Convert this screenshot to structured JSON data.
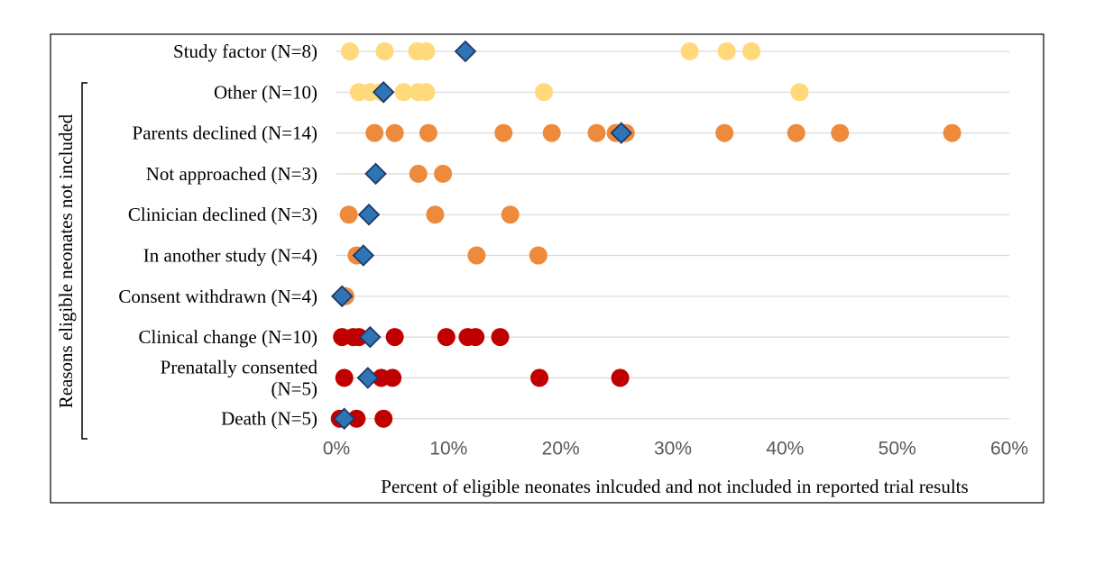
{
  "chart_data": {
    "type": "scatter",
    "title": "",
    "xlabel": "Percent of eligible neonates inlcuded and not included in reported trial results",
    "ylabel": "Reasons eligible neonates not included",
    "xlim": [
      0,
      60
    ],
    "x_ticks": [
      "0%",
      "10%",
      "20%",
      "30%",
      "40%",
      "50%",
      "60%"
    ],
    "grid": true,
    "colors": {
      "yellow": "#FFD97A",
      "orange": "#EE8A3C",
      "red": "#C00000",
      "mean_marker": "#2E75B6",
      "mean_border": "#1F3864",
      "grid": "#D9D9D9"
    },
    "categories": [
      {
        "label": "Study factor (N=8)",
        "color": "yellow",
        "points": [
          1.2,
          4.3,
          7.2,
          8.0,
          31.5,
          34.8,
          37.0
        ],
        "mean": 11.5
      },
      {
        "label": "Other (N=10)",
        "color": "yellow",
        "points": [
          2.0,
          3.0,
          4.0,
          6.0,
          7.3,
          8.0,
          18.5,
          41.3
        ],
        "mean": 4.2
      },
      {
        "label": "Parents declined (N=14)",
        "color": "orange",
        "points": [
          3.4,
          5.2,
          8.2,
          14.9,
          19.2,
          23.2,
          24.9,
          25.8,
          34.6,
          41.0,
          44.9,
          54.9
        ],
        "mean": 25.4
      },
      {
        "label": "Not approached (N=3)",
        "color": "orange",
        "points": [
          7.3,
          9.5
        ],
        "mean": 3.5
      },
      {
        "label": "Clinician declined (N=3)",
        "color": "orange",
        "points": [
          1.1,
          8.8,
          15.5
        ],
        "mean": 2.9
      },
      {
        "label": "In another study (N=4)",
        "color": "orange",
        "points": [
          1.8,
          12.5,
          18.0
        ],
        "mean": 2.4
      },
      {
        "label": "Consent withdrawn (N=4)",
        "color": "orange",
        "points": [
          0.8
        ],
        "mean": 0.5
      },
      {
        "label": "Clinical change (N=10)",
        "color": "red",
        "points": [
          0.5,
          1.5,
          2.0,
          5.2,
          9.8,
          11.7,
          12.4,
          14.6
        ],
        "mean": 3.0
      },
      {
        "label": [
          "Prenatally consented",
          "(N=5)"
        ],
        "color": "red",
        "points": [
          0.7,
          4.0,
          5.0,
          18.1,
          25.3
        ],
        "mean": 2.8
      },
      {
        "label": "Death (N=5)",
        "color": "red",
        "points": [
          0.3,
          1.8,
          4.2
        ],
        "mean": 0.7
      }
    ]
  }
}
